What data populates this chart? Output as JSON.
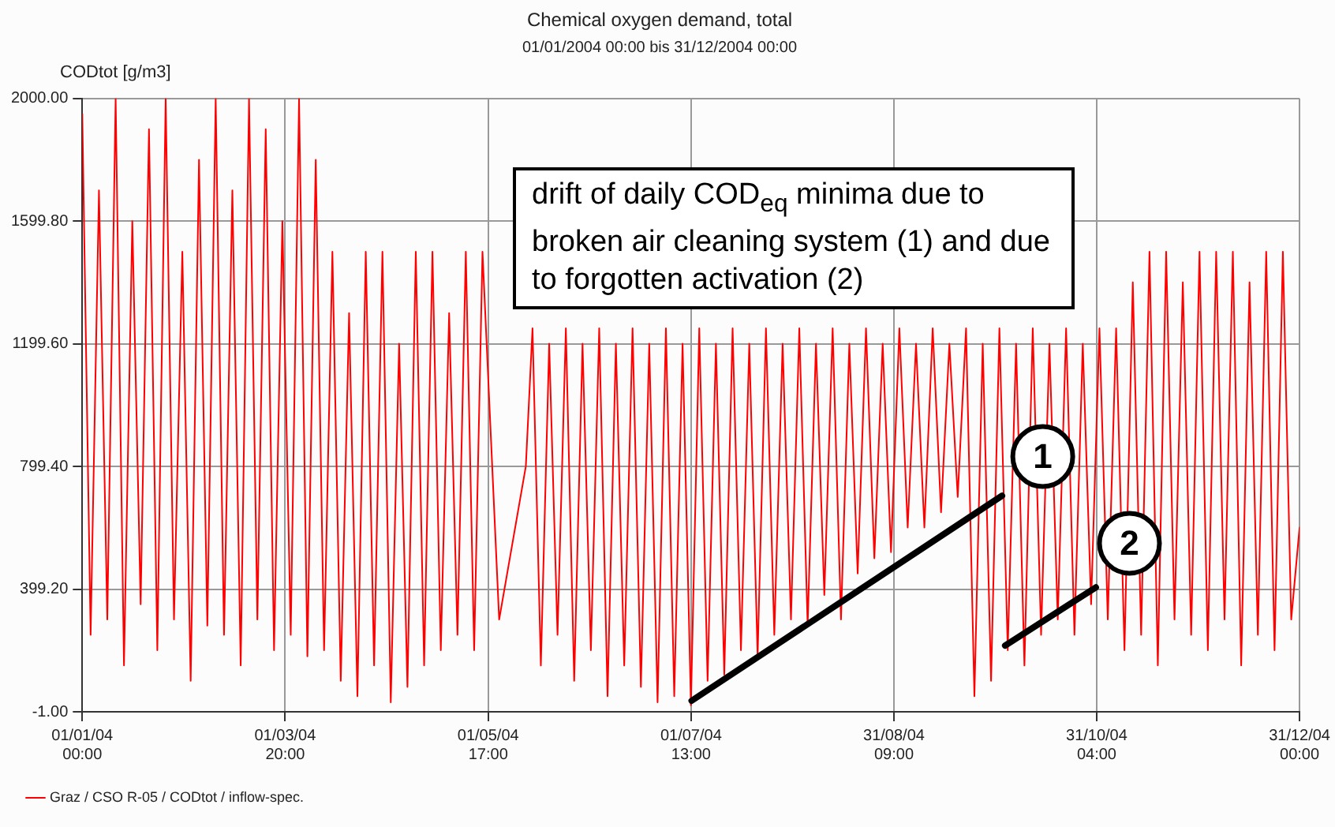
{
  "chart_data": {
    "type": "line",
    "title": "Chemical oxygen demand, total",
    "subtitle": "01/01/2004 00:00 bis 31/12/2004 00:00",
    "ylabel": "CODtot [g/m3]",
    "x": [
      "2004-01-01T00:00",
      "2004-01-03T12:00",
      "2004-01-06T00:00",
      "2004-01-08T12:00",
      "2004-01-11T00:00",
      "2004-01-13T12:00",
      "2004-01-16T00:00",
      "2004-01-18T12:00",
      "2004-01-21T00:00",
      "2004-01-23T12:00",
      "2004-01-26T00:00",
      "2004-01-28T12:00",
      "2004-01-31T00:00",
      "2004-02-02T12:00",
      "2004-02-05T00:00",
      "2004-02-07T12:00",
      "2004-02-10T00:00",
      "2004-02-12T12:00",
      "2004-02-15T00:00",
      "2004-02-17T12:00",
      "2004-02-20T00:00",
      "2004-02-22T12:00",
      "2004-02-25T00:00",
      "2004-02-27T12:00",
      "2004-03-01T00:00",
      "2004-03-03T12:00",
      "2004-03-06T00:00",
      "2004-03-08T12:00",
      "2004-03-11T00:00",
      "2004-03-13T12:00",
      "2004-03-16T00:00",
      "2004-03-18T12:00",
      "2004-03-21T00:00",
      "2004-03-23T12:00",
      "2004-03-26T00:00",
      "2004-03-28T12:00",
      "2004-03-31T00:00",
      "2004-04-02T12:00",
      "2004-04-05T00:00",
      "2004-04-07T12:00",
      "2004-04-10T00:00",
      "2004-04-12T12:00",
      "2004-04-15T00:00",
      "2004-04-17T12:00",
      "2004-04-20T00:00",
      "2004-04-22T12:00",
      "2004-04-25T00:00",
      "2004-04-27T12:00",
      "2004-04-30T00:00",
      "2004-05-05T00:00",
      "2004-05-13T00:00",
      "2004-05-15T00:00",
      "2004-05-17T12:00",
      "2004-05-20T00:00",
      "2004-05-22T12:00",
      "2004-05-25T00:00",
      "2004-05-27T12:00",
      "2004-05-30T00:00",
      "2004-06-01T12:00",
      "2004-06-04T00:00",
      "2004-06-06T12:00",
      "2004-06-09T00:00",
      "2004-06-11T12:00",
      "2004-06-14T00:00",
      "2004-06-16T12:00",
      "2004-06-19T00:00",
      "2004-06-21T12:00",
      "2004-06-24T00:00",
      "2004-06-26T12:00",
      "2004-06-29T00:00",
      "2004-07-01T12:00",
      "2004-07-04T00:00",
      "2004-07-06T12:00",
      "2004-07-09T00:00",
      "2004-07-11T12:00",
      "2004-07-14T00:00",
      "2004-07-16T12:00",
      "2004-07-19T00:00",
      "2004-07-21T12:00",
      "2004-07-24T00:00",
      "2004-07-26T12:00",
      "2004-07-29T00:00",
      "2004-07-31T12:00",
      "2004-08-03T00:00",
      "2004-08-05T12:00",
      "2004-08-08T00:00",
      "2004-08-10T12:00",
      "2004-08-13T00:00",
      "2004-08-15T12:00",
      "2004-08-18T00:00",
      "2004-08-20T12:00",
      "2004-08-23T00:00",
      "2004-08-25T12:00",
      "2004-08-28T00:00",
      "2004-08-30T12:00",
      "2004-09-02T00:00",
      "2004-09-04T12:00",
      "2004-09-07T00:00",
      "2004-09-09T12:00",
      "2004-09-12T00:00",
      "2004-09-14T12:00",
      "2004-09-17T00:00",
      "2004-09-19T12:00",
      "2004-09-22T00:00",
      "2004-09-24T12:00",
      "2004-09-27T00:00",
      "2004-09-29T12:00",
      "2004-10-02T00:00",
      "2004-10-04T12:00",
      "2004-10-07T00:00",
      "2004-10-09T12:00",
      "2004-10-12T00:00",
      "2004-10-14T12:00",
      "2004-10-17T00:00",
      "2004-10-19T12:00",
      "2004-10-22T00:00",
      "2004-10-24T12:00",
      "2004-10-27T00:00",
      "2004-10-29T12:00",
      "2004-11-01T00:00",
      "2004-11-03T12:00",
      "2004-11-06T00:00",
      "2004-11-08T12:00",
      "2004-11-11T00:00",
      "2004-11-13T12:00",
      "2004-11-16T00:00",
      "2004-11-18T12:00",
      "2004-11-21T00:00",
      "2004-11-23T12:00",
      "2004-11-26T00:00",
      "2004-11-28T12:00",
      "2004-12-01T00:00",
      "2004-12-03T12:00",
      "2004-12-06T00:00",
      "2004-12-08T12:00",
      "2004-12-11T00:00",
      "2004-12-13T12:00",
      "2004-12-16T00:00",
      "2004-12-18T12:00",
      "2004-12-21T00:00",
      "2004-12-23T12:00",
      "2004-12-26T00:00",
      "2004-12-28T12:00",
      "2004-12-31T00:00"
    ],
    "series": [
      {
        "name": "Graz / CSO R-05 / CODtot / inflow-spec.",
        "color": "#ff0000",
        "values": [
          1950,
          250,
          1700,
          300,
          2000,
          150,
          1600,
          350,
          1900,
          200,
          2000,
          300,
          1500,
          100,
          1800,
          280,
          2000,
          250,
          1700,
          150,
          2000,
          300,
          1900,
          200,
          1600,
          250,
          2000,
          180,
          1800,
          200,
          1500,
          100,
          1300,
          50,
          1500,
          150,
          1500,
          30,
          1200,
          80,
          1500,
          150,
          1500,
          200,
          1300,
          250,
          1500,
          200,
          1500,
          300,
          800,
          1250,
          150,
          1200,
          250,
          1250,
          100,
          1200,
          200,
          1250,
          50,
          1200,
          150,
          1250,
          80,
          1200,
          30,
          1250,
          50,
          1200,
          20,
          1250,
          100,
          1200,
          120,
          1250,
          200,
          1200,
          180,
          1250,
          250,
          1200,
          300,
          1250,
          280,
          1200,
          380,
          1250,
          300,
          1200,
          450,
          1250,
          500,
          1200,
          520,
          1250,
          600,
          1200,
          600,
          1250,
          650,
          1200,
          700,
          1250,
          50,
          1200,
          100,
          1250,
          200,
          1200,
          150,
          1250,
          250,
          1200,
          300,
          1250,
          250,
          1200,
          350,
          1250,
          300,
          1250,
          200,
          1400,
          250,
          1500,
          150,
          1500,
          300,
          1400,
          250,
          1500,
          200,
          1500,
          300,
          1500,
          150,
          1400,
          250,
          1500,
          200,
          1500,
          300,
          600
        ]
      },
      {
        "type": "line",
        "color": "#000000",
        "x": [
          "2004-07-01T17:00",
          "2004-10-02T19:00"
        ],
        "values": [
          35,
          704
        ]
      },
      {
        "type": "line",
        "color": "#000000",
        "x": [
          "2004-10-03T17:00",
          "2004-10-30T22:00"
        ],
        "values": [
          215,
          405
        ]
      }
    ],
    "xlim": [
      "2004-01-01T00:00",
      "2004-12-31T00:00"
    ],
    "xticks": [
      {
        "value": "2004-01-01T00:00",
        "label": "01/01/04 00:00"
      },
      {
        "value": "2004-03-01T20:00",
        "label": "01/03/04 20:00"
      },
      {
        "value": "2004-05-01T17:00",
        "label": "01/05/04 17:00"
      },
      {
        "value": "2004-07-01T13:00",
        "label": "01/07/04 13:00"
      },
      {
        "value": "2004-08-31T09:00",
        "label": "31/08/04 09:00"
      },
      {
        "value": "2004-10-31T04:00",
        "label": "31/10/04 04:00"
      },
      {
        "value": "2004-12-31T00:00",
        "label": "31/12/04 00:00"
      }
    ],
    "ylim": [
      -1,
      2000
    ],
    "yticks": [
      {
        "value": -1,
        "label": "-1.00"
      },
      {
        "value": 399.2,
        "label": "399.20"
      },
      {
        "value": 799.4,
        "label": "799.40"
      },
      {
        "value": 1199.6,
        "label": "1199.60"
      },
      {
        "value": 1599.8,
        "label": "1599.80"
      },
      {
        "value": 2000,
        "label": "2000.00"
      }
    ],
    "grid": true,
    "legend": "bottom left",
    "marker": "none",
    "line_style": "solid",
    "annotations": [
      "drift of daily COD$_{eq}$ minima due to broken air cleaning system (1) and due to forgotten activation (2)",
      {
        "text": "1",
        "x": "2004-10-15T00:00",
        "y": 832
      },
      {
        "text": "2",
        "x": "2004-11-10T00:00",
        "y": 549
      }
    ]
  }
}
